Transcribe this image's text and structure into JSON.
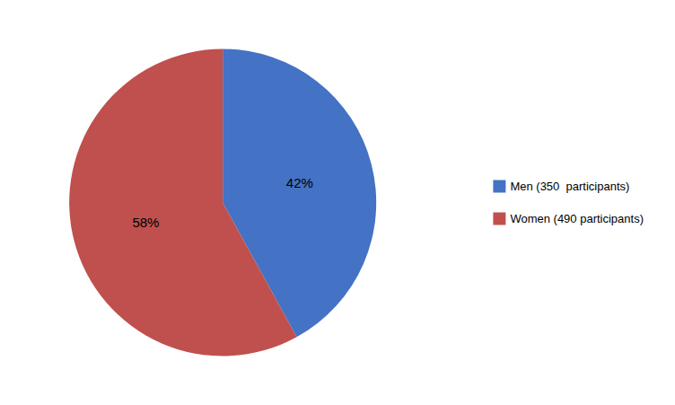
{
  "chart_data": {
    "type": "pie",
    "categories": [
      "Men (350  participants)",
      "Women (490 participants)"
    ],
    "values": [
      42,
      58
    ],
    "value_labels": [
      "42%",
      "58%"
    ],
    "colors": [
      "#4472C4",
      "#C0504D"
    ],
    "data_labels": true,
    "legend": "right"
  }
}
